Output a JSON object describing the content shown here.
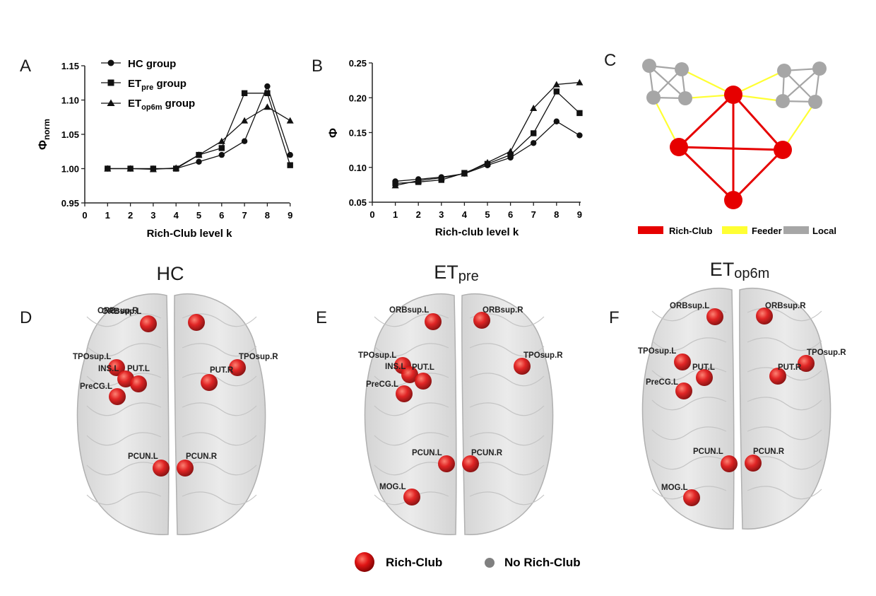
{
  "panel_letters": [
    "A",
    "B",
    "C",
    "D",
    "E",
    "F"
  ],
  "chart_data": [
    {
      "type": "line",
      "panel": "A",
      "xlabel": "Rich-Club level k",
      "ylabel": "Φ",
      "ylabel_sub": "norm",
      "xlim": [
        0,
        9
      ],
      "ylim": [
        0.95,
        1.15
      ],
      "x_ticks": [
        "0",
        "1",
        "2",
        "3",
        "4",
        "5",
        "6",
        "7",
        "8",
        "9"
      ],
      "y_ticks": [
        "0.95",
        "1.00",
        "1.05",
        "1.10",
        "1.15"
      ],
      "legend_position": "top-left",
      "series": [
        {
          "name": "HC group",
          "name_main": "HC group",
          "marker": "circle",
          "x": [
            1,
            2,
            3,
            4,
            5,
            6,
            7,
            8,
            9
          ],
          "values": [
            1.0,
            1.0,
            1.0,
            1.0,
            1.01,
            1.02,
            1.04,
            1.12,
            1.02
          ]
        },
        {
          "name": "ETpre group",
          "name_main": "ET",
          "name_sub": "pre",
          "name_tail": " group",
          "marker": "square",
          "x": [
            1,
            2,
            3,
            4,
            5,
            6,
            7,
            8,
            9
          ],
          "values": [
            1.0,
            1.0,
            1.0,
            1.0,
            1.02,
            1.03,
            1.11,
            1.11,
            1.005
          ]
        },
        {
          "name": "ETop6m group",
          "name_main": "ET",
          "name_sub": "op6m",
          "name_tail": " group",
          "marker": "triangle",
          "x": [
            1,
            2,
            3,
            4,
            5,
            6,
            7,
            8,
            9
          ],
          "values": [
            1.0,
            1.0,
            0.999,
            1.001,
            1.02,
            1.04,
            1.07,
            1.09,
            1.07
          ]
        }
      ]
    },
    {
      "type": "line",
      "panel": "B",
      "xlabel": "Rich-club level k",
      "ylabel": "Φ",
      "xlim": [
        0,
        9
      ],
      "ylim": [
        0.05,
        0.25
      ],
      "x_ticks": [
        "0",
        "1",
        "2",
        "3",
        "4",
        "5",
        "6",
        "7",
        "8",
        "9"
      ],
      "y_ticks": [
        "0.05",
        "0.10",
        "0.15",
        "0.20",
        "0.25"
      ],
      "series": [
        {
          "name": "HC group",
          "marker": "circle",
          "x": [
            1,
            2,
            3,
            4,
            5,
            6,
            7,
            8,
            9
          ],
          "values": [
            0.08,
            0.083,
            0.086,
            0.091,
            0.103,
            0.114,
            0.135,
            0.166,
            0.146
          ]
        },
        {
          "name": "ETpre group",
          "marker": "square",
          "x": [
            1,
            2,
            3,
            4,
            5,
            6,
            7,
            8,
            9
          ],
          "values": [
            0.077,
            0.079,
            0.082,
            0.092,
            0.105,
            0.118,
            0.149,
            0.209,
            0.178
          ]
        },
        {
          "name": "ETop6m group",
          "marker": "triangle",
          "x": [
            1,
            2,
            3,
            4,
            5,
            6,
            7,
            8,
            9
          ],
          "values": [
            0.074,
            0.081,
            0.085,
            0.091,
            0.107,
            0.123,
            0.185,
            0.219,
            0.222
          ]
        }
      ]
    }
  ],
  "network_diagram": {
    "legend": [
      {
        "label": "Rich-Club",
        "color": "#e60000"
      },
      {
        "label": "Feeder",
        "color": "#ffff33"
      },
      {
        "label": "Local",
        "color": "#a6a6a6"
      }
    ]
  },
  "brains": [
    {
      "title_main": "HC",
      "title_sub": "",
      "regions": [
        "ORBsup.L",
        "ORBsup.R",
        "TPOsup.L",
        "TPOsup.R",
        "INS.L",
        "PUT.L",
        "PUT.R",
        "PreCG.L",
        "PCUN.L",
        "PCUN.R"
      ]
    },
    {
      "title_main": "ET",
      "title_sub": "pre",
      "regions": [
        "ORBsup.L",
        "ORBsup.R",
        "TPOsup.L",
        "TPOsup.R",
        "INS.L",
        "PUT.L",
        "PreCG.L",
        "PCUN.L",
        "PCUN.R",
        "MOG.L"
      ]
    },
    {
      "title_main": "ET",
      "title_sub": "op6m",
      "regions": [
        "ORBsup.L",
        "ORBsup.R",
        "TPOsup.L",
        "TPOsup.R",
        "PUT.L",
        "PUT.R",
        "PreCG.L",
        "PCUN.L",
        "PCUN.R",
        "MOG.L"
      ]
    }
  ],
  "bottom_legend": [
    {
      "label": "Rich-Club",
      "color": "#e60000"
    },
    {
      "label": "No Rich-Club",
      "color": "#808080"
    }
  ]
}
